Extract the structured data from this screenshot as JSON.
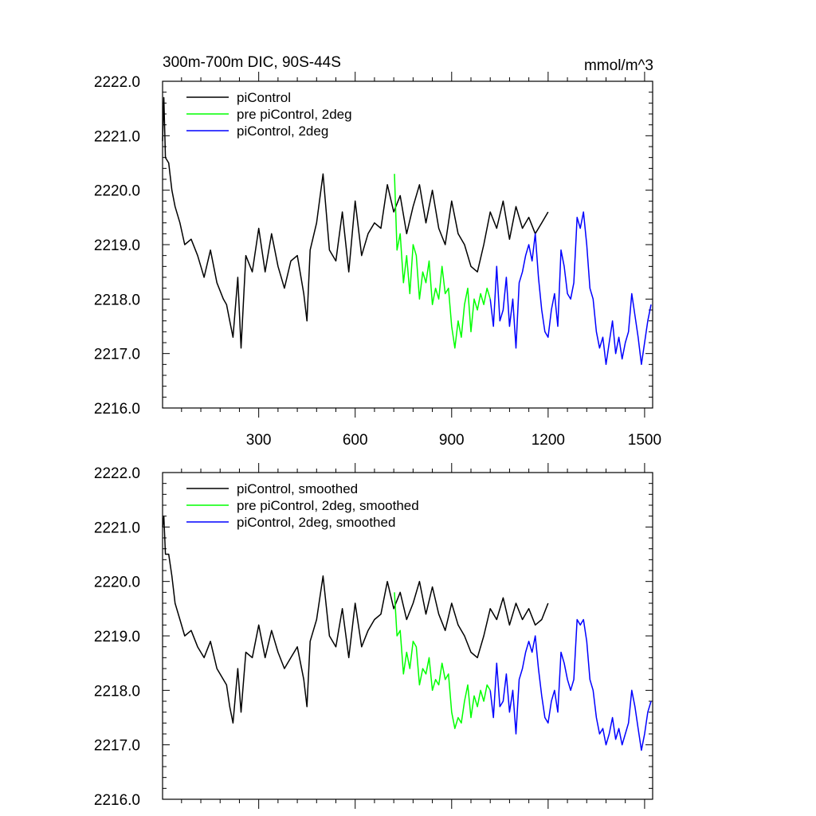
{
  "chart_data": [
    {
      "type": "line",
      "title": "300m-700m DIC, 90S-44S",
      "units_label": "mmol/m^3",
      "xlim": [
        1,
        1525
      ],
      "ylim": [
        2216.0,
        2222.0
      ],
      "xticks": [
        300,
        600,
        900,
        1200,
        1500
      ],
      "xtick_labels": [
        "300",
        "600",
        "900",
        "1200",
        "1500"
      ],
      "yticks": [
        2216.0,
        2217.0,
        2218.0,
        2219.0,
        2220.0,
        2221.0,
        2222.0
      ],
      "ytick_labels": [
        "2216.0",
        "2217.0",
        "2218.0",
        "2219.0",
        "2220.0",
        "2221.0",
        "2222.0"
      ],
      "legend_position": "top-left",
      "series": [
        {
          "name": "piControl",
          "color": "#000000",
          "x": [
            1,
            5,
            10,
            20,
            30,
            40,
            55,
            70,
            90,
            110,
            130,
            150,
            170,
            190,
            200,
            210,
            220,
            235,
            245,
            260,
            280,
            300,
            320,
            340,
            360,
            380,
            400,
            420,
            440,
            450,
            460,
            480,
            500,
            520,
            540,
            560,
            580,
            600,
            620,
            640,
            660,
            680,
            700,
            720,
            740,
            760,
            780,
            800,
            820,
            840,
            860,
            880,
            900,
            920,
            940,
            960,
            980,
            1000,
            1020,
            1040,
            1060,
            1080,
            1100,
            1120,
            1140,
            1160,
            1180,
            1200
          ],
          "values": [
            2220.9,
            2221.7,
            2220.6,
            2220.5,
            2220.0,
            2219.7,
            2219.4,
            2219.0,
            2219.1,
            2218.8,
            2218.4,
            2218.9,
            2218.3,
            2218.0,
            2217.9,
            2217.6,
            2217.3,
            2218.4,
            2217.1,
            2218.8,
            2218.5,
            2219.3,
            2218.5,
            2219.2,
            2218.6,
            2218.2,
            2218.7,
            2218.8,
            2218.1,
            2217.6,
            2218.9,
            2219.4,
            2220.3,
            2218.9,
            2218.7,
            2219.6,
            2218.5,
            2219.8,
            2218.8,
            2219.2,
            2219.4,
            2219.3,
            2220.1,
            2219.6,
            2219.9,
            2219.2,
            2219.7,
            2220.1,
            2219.4,
            2220.0,
            2219.3,
            2219.0,
            2219.8,
            2219.2,
            2219.0,
            2218.6,
            2218.5,
            2219.0,
            2219.6,
            2219.3,
            2219.8,
            2219.1,
            2219.7,
            2219.3,
            2219.5,
            2219.2,
            2219.4,
            2219.6
          ]
        },
        {
          "name": "pre piControl, 2deg",
          "color": "#00ff00",
          "x": [
            722,
            730,
            740,
            750,
            760,
            770,
            780,
            790,
            800,
            810,
            820,
            830,
            840,
            850,
            860,
            870,
            880,
            890,
            900,
            910,
            920,
            930,
            940,
            950,
            960,
            970,
            980,
            990,
            1000,
            1010,
            1020
          ],
          "values": [
            2220.3,
            2218.9,
            2219.2,
            2218.3,
            2218.8,
            2218.1,
            2219.0,
            2218.8,
            2218.0,
            2218.5,
            2218.3,
            2218.7,
            2217.9,
            2218.2,
            2218.0,
            2218.6,
            2218.1,
            2218.2,
            2217.5,
            2217.1,
            2217.6,
            2217.3,
            2217.9,
            2218.2,
            2217.4,
            2218.0,
            2217.8,
            2218.1,
            2217.9,
            2218.2,
            2218.0
          ]
        },
        {
          "name": "piControl, 2deg",
          "color": "#0000ff",
          "x": [
            1020,
            1030,
            1040,
            1050,
            1060,
            1070,
            1080,
            1090,
            1100,
            1110,
            1120,
            1130,
            1140,
            1150,
            1160,
            1170,
            1180,
            1190,
            1200,
            1210,
            1220,
            1230,
            1240,
            1250,
            1260,
            1270,
            1280,
            1290,
            1300,
            1310,
            1320,
            1330,
            1340,
            1350,
            1360,
            1370,
            1380,
            1390,
            1400,
            1410,
            1420,
            1430,
            1440,
            1450,
            1460,
            1470,
            1480,
            1490,
            1500,
            1510,
            1520
          ],
          "values": [
            2218.0,
            2217.5,
            2218.6,
            2217.6,
            2217.8,
            2218.4,
            2217.5,
            2218.0,
            2217.1,
            2218.3,
            2218.5,
            2218.8,
            2219.0,
            2218.7,
            2219.2,
            2218.4,
            2217.8,
            2217.4,
            2217.3,
            2217.8,
            2218.1,
            2217.5,
            2218.9,
            2218.6,
            2218.1,
            2218.0,
            2218.3,
            2219.5,
            2219.3,
            2219.6,
            2219.0,
            2218.2,
            2218.0,
            2217.4,
            2217.1,
            2217.3,
            2216.8,
            2217.2,
            2217.6,
            2217.0,
            2217.3,
            2216.9,
            2217.2,
            2217.4,
            2218.1,
            2217.7,
            2217.3,
            2216.8,
            2217.2,
            2217.6,
            2217.9
          ]
        }
      ]
    },
    {
      "type": "line",
      "title": "",
      "xlim": [
        1,
        1525
      ],
      "ylim": [
        2216.0,
        2222.0
      ],
      "xticks": [
        300,
        600,
        900,
        1200,
        1500
      ],
      "yticks": [
        2216.0,
        2217.0,
        2218.0,
        2219.0,
        2220.0,
        2221.0,
        2222.0
      ],
      "ytick_labels": [
        "2216.0",
        "2217.0",
        "2218.0",
        "2219.0",
        "2220.0",
        "2221.0",
        "2222.0"
      ],
      "legend_position": "top-left",
      "series": [
        {
          "name": "piControl, smoothed",
          "color": "#000000",
          "x": [
            1,
            5,
            10,
            20,
            30,
            40,
            55,
            70,
            90,
            110,
            130,
            150,
            170,
            190,
            200,
            210,
            220,
            235,
            245,
            260,
            280,
            300,
            320,
            340,
            360,
            380,
            400,
            420,
            440,
            450,
            460,
            480,
            500,
            520,
            540,
            560,
            580,
            600,
            620,
            640,
            660,
            680,
            700,
            720,
            740,
            760,
            780,
            800,
            820,
            840,
            860,
            880,
            900,
            920,
            940,
            960,
            980,
            1000,
            1020,
            1040,
            1060,
            1080,
            1100,
            1120,
            1140,
            1160,
            1180,
            1200
          ],
          "values": [
            2221.0,
            2221.2,
            2220.5,
            2220.5,
            2220.1,
            2219.6,
            2219.3,
            2219.0,
            2219.1,
            2218.8,
            2218.6,
            2218.9,
            2218.4,
            2218.2,
            2218.1,
            2217.7,
            2217.4,
            2218.4,
            2217.6,
            2218.7,
            2218.6,
            2219.2,
            2218.6,
            2219.1,
            2218.7,
            2218.4,
            2218.6,
            2218.8,
            2218.2,
            2217.7,
            2218.9,
            2219.3,
            2220.1,
            2219.0,
            2218.8,
            2219.5,
            2218.6,
            2219.6,
            2218.8,
            2219.1,
            2219.3,
            2219.4,
            2220.0,
            2219.5,
            2219.8,
            2219.3,
            2219.6,
            2220.0,
            2219.4,
            2219.9,
            2219.4,
            2219.1,
            2219.6,
            2219.2,
            2219.0,
            2218.7,
            2218.6,
            2219.0,
            2219.5,
            2219.3,
            2219.7,
            2219.2,
            2219.6,
            2219.3,
            2219.5,
            2219.2,
            2219.3,
            2219.6
          ]
        },
        {
          "name": "pre piControl, 2deg, smoothed",
          "color": "#00ff00",
          "x": [
            722,
            730,
            740,
            750,
            760,
            770,
            780,
            790,
            800,
            810,
            820,
            830,
            840,
            850,
            860,
            870,
            880,
            890,
            900,
            910,
            920,
            930,
            940,
            950,
            960,
            970,
            980,
            990,
            1000,
            1010,
            1020
          ],
          "values": [
            2219.8,
            2219.0,
            2219.1,
            2218.3,
            2218.7,
            2218.4,
            2218.9,
            2218.8,
            2218.1,
            2218.4,
            2218.3,
            2218.6,
            2218.0,
            2218.2,
            2218.1,
            2218.5,
            2218.2,
            2218.3,
            2217.6,
            2217.3,
            2217.5,
            2217.4,
            2217.8,
            2218.1,
            2217.5,
            2217.9,
            2217.7,
            2218.0,
            2217.8,
            2218.1,
            2218.0
          ]
        },
        {
          "name": "piControl, 2deg, smoothed",
          "color": "#0000ff",
          "x": [
            1020,
            1030,
            1040,
            1050,
            1060,
            1070,
            1080,
            1090,
            1100,
            1110,
            1120,
            1130,
            1140,
            1150,
            1160,
            1170,
            1180,
            1190,
            1200,
            1210,
            1220,
            1230,
            1240,
            1250,
            1260,
            1270,
            1280,
            1290,
            1300,
            1310,
            1320,
            1330,
            1340,
            1350,
            1360,
            1370,
            1380,
            1390,
            1400,
            1410,
            1420,
            1430,
            1440,
            1450,
            1460,
            1470,
            1480,
            1490,
            1500,
            1510,
            1520
          ],
          "values": [
            2218.0,
            2217.5,
            2218.5,
            2217.7,
            2217.8,
            2218.3,
            2217.6,
            2218.0,
            2217.2,
            2218.2,
            2218.4,
            2218.7,
            2218.9,
            2218.7,
            2219.0,
            2218.4,
            2217.9,
            2217.5,
            2217.4,
            2217.8,
            2218.0,
            2217.6,
            2218.7,
            2218.5,
            2218.2,
            2218.0,
            2218.2,
            2219.3,
            2219.2,
            2219.3,
            2218.9,
            2218.2,
            2218.0,
            2217.5,
            2217.2,
            2217.3,
            2217.0,
            2217.2,
            2217.5,
            2217.1,
            2217.3,
            2217.0,
            2217.2,
            2217.4,
            2218.0,
            2217.7,
            2217.3,
            2216.9,
            2217.2,
            2217.6,
            2217.8
          ]
        }
      ]
    }
  ]
}
